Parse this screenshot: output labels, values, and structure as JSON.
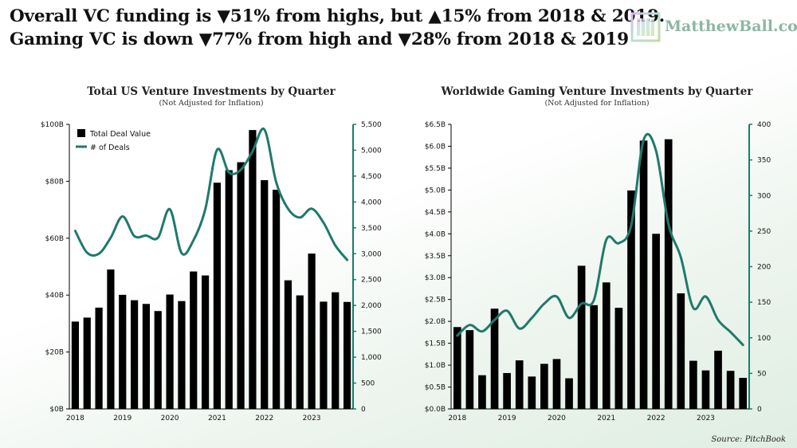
{
  "header": {
    "line1": "Overall VC funding is ▼51% from highs, but ▲15% from 2018 & 2019.",
    "line2": "Gaming VC is down ▼77% from high and ▼28% from 2018 & 2019"
  },
  "logo": {
    "text": "MatthewBall.co"
  },
  "source": "Source: PitchBook",
  "colors": {
    "bar": "#000000",
    "line": "#1e7a6c",
    "axis": "#1e7a6c",
    "text": "#111111"
  },
  "chart_data": [
    {
      "type": "bar",
      "title": "Total US Venture Investments by Quarter",
      "subtitle": "(Not Adjusted for Inflation)",
      "x_labels": [
        "2018",
        "2019",
        "2020",
        "2021",
        "2022",
        "2023"
      ],
      "left_axis": {
        "ticks": [
          "$0B",
          "$20B",
          "$40B",
          "$60B",
          "$80B",
          "$100B"
        ],
        "range": [
          0,
          100
        ]
      },
      "right_axis": {
        "ticks": [
          "0",
          "500",
          "1,000",
          "1,500",
          "2,000",
          "2,500",
          "3,000",
          "3,500",
          "4,000",
          "4,500",
          "5,000",
          "5,500"
        ],
        "range": [
          0,
          5500
        ]
      },
      "legend": {
        "bar_label": "Total Deal Value",
        "line_label": "# of Deals",
        "position": "top-left"
      },
      "series": [
        {
          "name": "Total Deal Value",
          "axis": "left",
          "unit": "$B",
          "values": [
            30.7,
            32.1,
            35.6,
            49.0,
            40.1,
            38.2,
            36.9,
            34.4,
            40.2,
            37.9,
            48.3,
            46.9,
            79.5,
            83.9,
            86.7,
            98.0,
            80.4,
            77.0,
            45.2,
            39.9,
            54.6,
            37.7,
            41.0,
            37.6
          ]
        },
        {
          "name": "# of Deals",
          "axis": "right",
          "unit": "count",
          "values": [
            3440,
            3020,
            3000,
            3310,
            3720,
            3340,
            3350,
            3310,
            3860,
            3010,
            3260,
            3860,
            5010,
            4570,
            4620,
            4980,
            5400,
            4380,
            3870,
            3700,
            3870,
            3600,
            3160,
            2880
          ]
        }
      ]
    },
    {
      "type": "bar",
      "title": "Worldwide Gaming Venture Investments by Quarter",
      "subtitle": "(Not Adjusted for Inflation)",
      "x_labels": [
        "2018",
        "2019",
        "2020",
        "2021",
        "2022",
        "2023"
      ],
      "left_axis": {
        "ticks": [
          "$0.0B",
          "$0.5B",
          "$1.0B",
          "$1.5B",
          "$2.0B",
          "$2.5B",
          "$3.0B",
          "$3.5B",
          "$4.0B",
          "$4.5B",
          "$5.0B",
          "$5.5B",
          "$6.0B",
          "$6.5B"
        ],
        "range": [
          0,
          6.5
        ]
      },
      "right_axis": {
        "ticks": [
          "0",
          "50",
          "100",
          "150",
          "200",
          "250",
          "300",
          "350",
          "400"
        ],
        "range": [
          0,
          400
        ]
      },
      "series": [
        {
          "name": "Total Deal Value",
          "axis": "left",
          "unit": "$B",
          "values": [
            1.87,
            1.8,
            0.77,
            2.29,
            0.82,
            1.11,
            0.74,
            1.03,
            1.14,
            0.7,
            3.27,
            2.37,
            2.89,
            2.31,
            4.99,
            6.13,
            4.0,
            6.16,
            2.64,
            1.1,
            0.88,
            1.33,
            0.87,
            0.71
          ]
        },
        {
          "name": "# of Deals",
          "axis": "right",
          "unit": "count",
          "values": [
            103,
            118,
            109,
            125,
            138,
            113,
            128,
            148,
            158,
            128,
            148,
            153,
            238,
            233,
            258,
            378,
            363,
            260,
            213,
            142,
            158,
            125,
            108,
            90
          ]
        }
      ]
    }
  ]
}
